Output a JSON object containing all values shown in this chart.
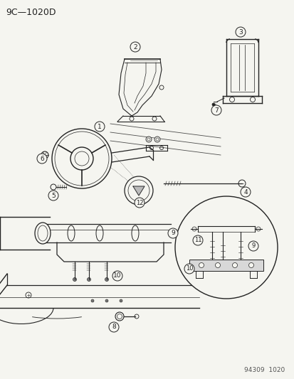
{
  "title": "9C—1020D",
  "bg_color": "#f5f5f0",
  "text_color": "#222222",
  "footnote": "94309  1020",
  "fig_width": 4.14,
  "fig_height": 5.33,
  "dpi": 100
}
